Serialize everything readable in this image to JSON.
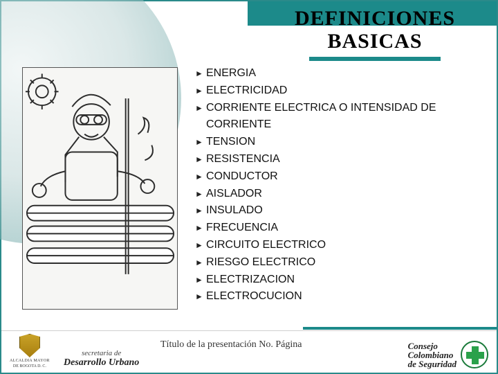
{
  "colors": {
    "accent": "#1c8a8a",
    "background": "#ffffff",
    "text": "#111111",
    "footer_text": "#333333"
  },
  "title": {
    "line1": "DEFINICIONES",
    "line2": "BASICAS",
    "fontsize": 30,
    "underline_color": "#1c8a8a"
  },
  "bullet_glyph": "►",
  "bullets": [
    "ENERGIA",
    "ELECTRICIDAD",
    "CORRIENTE ELECTRICA  O INTENSIDAD DE CORRIENTE",
    "TENSION",
    "RESISTENCIA",
    "CONDUCTOR",
    "AISLADOR",
    "INSULADO",
    "FRECUENCIA",
    "CIRCUITO ELECTRICO",
    "RIESGO ELECTRICO",
    "ELECTRIZACION",
    "ELECTROCUCION"
  ],
  "footer": {
    "text": "Título de la presentación No. Página"
  },
  "branding": {
    "left": {
      "line1": "ALCALDIA MAYOR",
      "line2": "DE BOGOTA D. C."
    },
    "middle": {
      "line1": "secretaria de",
      "line2": "Desarrollo Urbano"
    },
    "right": {
      "line1": "Consejo",
      "line2": "Colombiano",
      "line3": "de Seguridad"
    }
  },
  "figure": {
    "description": "Black-and-white line drawing of a worker wearing goggles operating industrial pipe/roller machinery",
    "stroke": "#2d2d2d",
    "fill": "#f6f6f4"
  }
}
